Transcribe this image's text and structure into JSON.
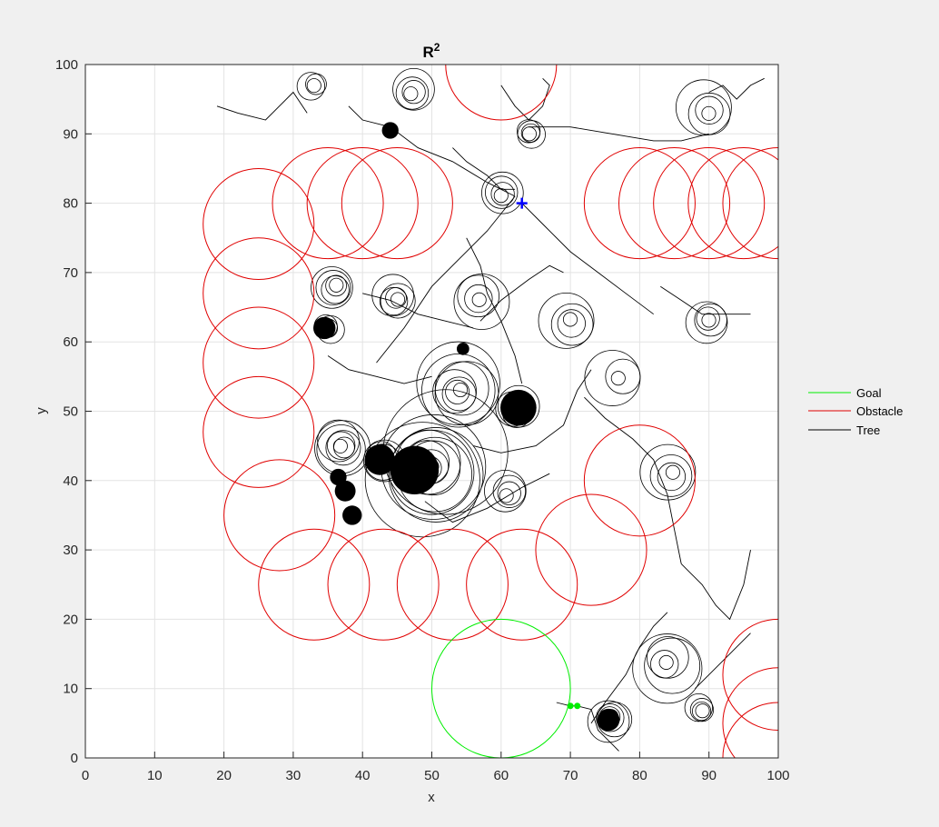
{
  "chart_data": {
    "type": "line",
    "title": "R",
    "title_superscript": "2",
    "xlabel": "x",
    "ylabel": "y",
    "xlim": [
      0,
      100
    ],
    "ylim": [
      0,
      100
    ],
    "xticks": [
      0,
      10,
      20,
      30,
      40,
      50,
      60,
      70,
      80,
      90,
      100
    ],
    "yticks": [
      0,
      10,
      20,
      30,
      40,
      50,
      60,
      70,
      80,
      90,
      100
    ],
    "grid": true,
    "legend_position": "outside-right",
    "series": [
      {
        "name": "Goal",
        "color": "#00ee00",
        "shape": "circle",
        "circles": [
          {
            "cx": 60,
            "cy": 10,
            "r": 10
          }
        ]
      },
      {
        "name": "Obstacle",
        "color": "#e00000",
        "shape": "circle",
        "circles": [
          {
            "cx": 60,
            "cy": 100,
            "r": 8
          },
          {
            "cx": 35,
            "cy": 80,
            "r": 8
          },
          {
            "cx": 40,
            "cy": 80,
            "r": 8
          },
          {
            "cx": 45,
            "cy": 80,
            "r": 8
          },
          {
            "cx": 25,
            "cy": 77,
            "r": 8
          },
          {
            "cx": 25,
            "cy": 67,
            "r": 8
          },
          {
            "cx": 25,
            "cy": 57,
            "r": 8
          },
          {
            "cx": 25,
            "cy": 47,
            "r": 8
          },
          {
            "cx": 28,
            "cy": 35,
            "r": 8
          },
          {
            "cx": 33,
            "cy": 25,
            "r": 8
          },
          {
            "cx": 43,
            "cy": 25,
            "r": 8
          },
          {
            "cx": 53,
            "cy": 25,
            "r": 8
          },
          {
            "cx": 63,
            "cy": 25,
            "r": 8
          },
          {
            "cx": 73,
            "cy": 30,
            "r": 8
          },
          {
            "cx": 80,
            "cy": 40,
            "r": 8
          },
          {
            "cx": 80,
            "cy": 80,
            "r": 8
          },
          {
            "cx": 85,
            "cy": 80,
            "r": 8
          },
          {
            "cx": 90,
            "cy": 80,
            "r": 8
          },
          {
            "cx": 95,
            "cy": 80,
            "r": 8
          },
          {
            "cx": 100,
            "cy": 80,
            "r": 8
          },
          {
            "cx": 100,
            "cy": 12,
            "r": 8
          },
          {
            "cx": 100,
            "cy": 5,
            "r": 8
          },
          {
            "cx": 100,
            "cy": 0,
            "r": 8
          }
        ]
      },
      {
        "name": "Tree",
        "color": "#000000",
        "shape": "trajectories",
        "clusters": [
          {
            "cx": 50,
            "cy": 42,
            "n": 12,
            "rmin": 1,
            "rmax": 9
          },
          {
            "cx": 37,
            "cy": 45,
            "n": 7,
            "rmin": 1,
            "rmax": 4
          },
          {
            "cx": 43,
            "cy": 43,
            "n": 6,
            "rmin": 1,
            "rmax": 3
          },
          {
            "cx": 54,
            "cy": 53,
            "n": 8,
            "rmin": 1,
            "rmax": 6
          },
          {
            "cx": 62,
            "cy": 50,
            "n": 5,
            "rmin": 1,
            "rmax": 3
          },
          {
            "cx": 36,
            "cy": 68,
            "n": 5,
            "rmin": 1,
            "rmax": 3
          },
          {
            "cx": 45,
            "cy": 66,
            "n": 5,
            "rmin": 1,
            "rmax": 3
          },
          {
            "cx": 35,
            "cy": 62,
            "n": 4,
            "rmin": 1,
            "rmax": 2
          },
          {
            "cx": 61,
            "cy": 38,
            "n": 4,
            "rmin": 1,
            "rmax": 3
          },
          {
            "cx": 84,
            "cy": 14,
            "n": 5,
            "rmin": 1,
            "rmax": 5
          },
          {
            "cx": 76,
            "cy": 6,
            "n": 5,
            "rmin": 1,
            "rmax": 3
          },
          {
            "cx": 89,
            "cy": 7,
            "n": 4,
            "rmin": 1,
            "rmax": 2
          },
          {
            "cx": 90,
            "cy": 63,
            "n": 4,
            "rmin": 1,
            "rmax": 3
          },
          {
            "cx": 85,
            "cy": 41,
            "n": 4,
            "rmin": 1,
            "rmax": 4
          },
          {
            "cx": 90,
            "cy": 93,
            "n": 4,
            "rmin": 1,
            "rmax": 4
          },
          {
            "cx": 64,
            "cy": 90,
            "n": 4,
            "rmin": 1,
            "rmax": 2
          },
          {
            "cx": 60,
            "cy": 81,
            "n": 4,
            "rmin": 1,
            "rmax": 3
          },
          {
            "cx": 47,
            "cy": 96,
            "n": 4,
            "rmin": 1,
            "rmax": 3
          },
          {
            "cx": 33,
            "cy": 97,
            "n": 3,
            "rmin": 1,
            "rmax": 2
          },
          {
            "cx": 70,
            "cy": 63,
            "n": 4,
            "rmin": 1,
            "rmax": 4
          },
          {
            "cx": 77,
            "cy": 55,
            "n": 3,
            "rmin": 1,
            "rmax": 4
          },
          {
            "cx": 57,
            "cy": 66,
            "n": 4,
            "rmin": 1,
            "rmax": 4
          }
        ],
        "filled_dots": [
          {
            "cx": 44,
            "cy": 90.5,
            "r": 1.2
          },
          {
            "cx": 62.5,
            "cy": 50.5,
            "r": 2.6
          },
          {
            "cx": 37.5,
            "cy": 38.5,
            "r": 1.5
          },
          {
            "cx": 38.5,
            "cy": 35,
            "r": 1.4
          },
          {
            "cx": 36.5,
            "cy": 40.5,
            "r": 1.2
          },
          {
            "cx": 34.5,
            "cy": 62,
            "r": 1.6
          },
          {
            "cx": 75.5,
            "cy": 5.5,
            "r": 1.6
          },
          {
            "cx": 54.5,
            "cy": 59,
            "r": 0.9
          },
          {
            "cx": 47.5,
            "cy": 41.5,
            "r": 3.5
          },
          {
            "cx": 42.5,
            "cy": 43,
            "r": 2.2
          }
        ],
        "paths": [
          [
            [
              19,
              94
            ],
            [
              22,
              93
            ],
            [
              26,
              92
            ],
            [
              28,
              94
            ],
            [
              30,
              96
            ],
            [
              32,
              93
            ]
          ],
          [
            [
              38,
              94
            ],
            [
              40,
              92
            ],
            [
              44,
              91
            ],
            [
              48,
              88
            ],
            [
              53,
              86
            ],
            [
              58,
              83
            ],
            [
              62,
              81
            ]
          ],
          [
            [
              62,
              81
            ],
            [
              58,
              76
            ],
            [
              54,
              72
            ],
            [
              50,
              68
            ],
            [
              46,
              62
            ],
            [
              42,
              57
            ]
          ],
          [
            [
              63,
              80
            ],
            [
              66,
              77
            ],
            [
              70,
              73
            ],
            [
              74,
              70
            ],
            [
              78,
              67
            ],
            [
              82,
              64
            ]
          ],
          [
            [
              64,
              91
            ],
            [
              70,
              91
            ],
            [
              76,
              90
            ],
            [
              82,
              89
            ],
            [
              86,
              89
            ],
            [
              90,
              90
            ]
          ],
          [
            [
              55,
              75
            ],
            [
              57,
              71
            ],
            [
              58,
              67
            ],
            [
              60,
              63
            ],
            [
              62,
              58
            ],
            [
              63,
              54
            ]
          ],
          [
            [
              72,
              52
            ],
            [
              75,
              49
            ],
            [
              79,
              46
            ],
            [
              82,
              43
            ],
            [
              84,
              38
            ],
            [
              85,
              33
            ],
            [
              86,
              28
            ]
          ],
          [
            [
              86,
              28
            ],
            [
              89,
              25
            ],
            [
              91,
              22
            ],
            [
              93,
              20
            ],
            [
              95,
              25
            ],
            [
              96,
              30
            ]
          ],
          [
            [
              73,
              5
            ],
            [
              75,
              8
            ],
            [
              78,
              12
            ],
            [
              80,
              16
            ],
            [
              82,
              19
            ],
            [
              84,
              21
            ]
          ],
          [
            [
              68,
              8
            ],
            [
              70,
              7.5
            ],
            [
              71,
              7.5
            ],
            [
              73,
              7
            ],
            [
              74,
              4
            ],
            [
              76,
              2
            ],
            [
              77,
              1
            ]
          ],
          [
            [
              60,
              97
            ],
            [
              62,
              94
            ],
            [
              64,
              92
            ],
            [
              66,
              94
            ],
            [
              67,
              97
            ],
            [
              66,
              98
            ]
          ],
          [
            [
              53,
              88
            ],
            [
              55,
              86
            ],
            [
              58,
              84
            ],
            [
              60,
              82
            ],
            [
              62,
              82
            ]
          ],
          [
            [
              49,
              37
            ],
            [
              53,
              34
            ],
            [
              58,
              36
            ],
            [
              63,
              39
            ],
            [
              67,
              41
            ]
          ],
          [
            [
              56,
              45
            ],
            [
              60,
              44
            ],
            [
              65,
              45
            ],
            [
              69,
              48
            ],
            [
              71,
              53
            ],
            [
              73,
              56
            ]
          ],
          [
            [
              83,
              68
            ],
            [
              86,
              66
            ],
            [
              89,
              64
            ],
            [
              92,
              64
            ],
            [
              96,
              64
            ]
          ],
          [
            [
              88,
              10
            ],
            [
              90,
              12
            ],
            [
              92,
              14
            ],
            [
              94,
              16
            ],
            [
              96,
              18
            ]
          ],
          [
            [
              35,
              58
            ],
            [
              38,
              56
            ],
            [
              42,
              55
            ],
            [
              46,
              54
            ],
            [
              50,
              55
            ]
          ],
          [
            [
              40,
              67
            ],
            [
              44,
              66
            ],
            [
              48,
              64
            ],
            [
              52,
              63
            ],
            [
              56,
              62
            ]
          ],
          [
            [
              57,
              63
            ],
            [
              60,
              66
            ],
            [
              64,
              69
            ],
            [
              67,
              71
            ],
            [
              69,
              70
            ]
          ],
          [
            [
              90,
              96
            ],
            [
              92,
              97
            ],
            [
              94,
              95
            ],
            [
              96,
              97
            ],
            [
              98,
              98
            ]
          ]
        ],
        "markers": [
          {
            "cx": 63,
            "cy": 80,
            "color": "#0000ff",
            "symbol": "+"
          },
          {
            "cx": 70,
            "cy": 7.5,
            "color": "#00ee00",
            "symbol": "dot"
          },
          {
            "cx": 71,
            "cy": 7.5,
            "color": "#00ee00",
            "symbol": "dot"
          }
        ]
      }
    ]
  }
}
